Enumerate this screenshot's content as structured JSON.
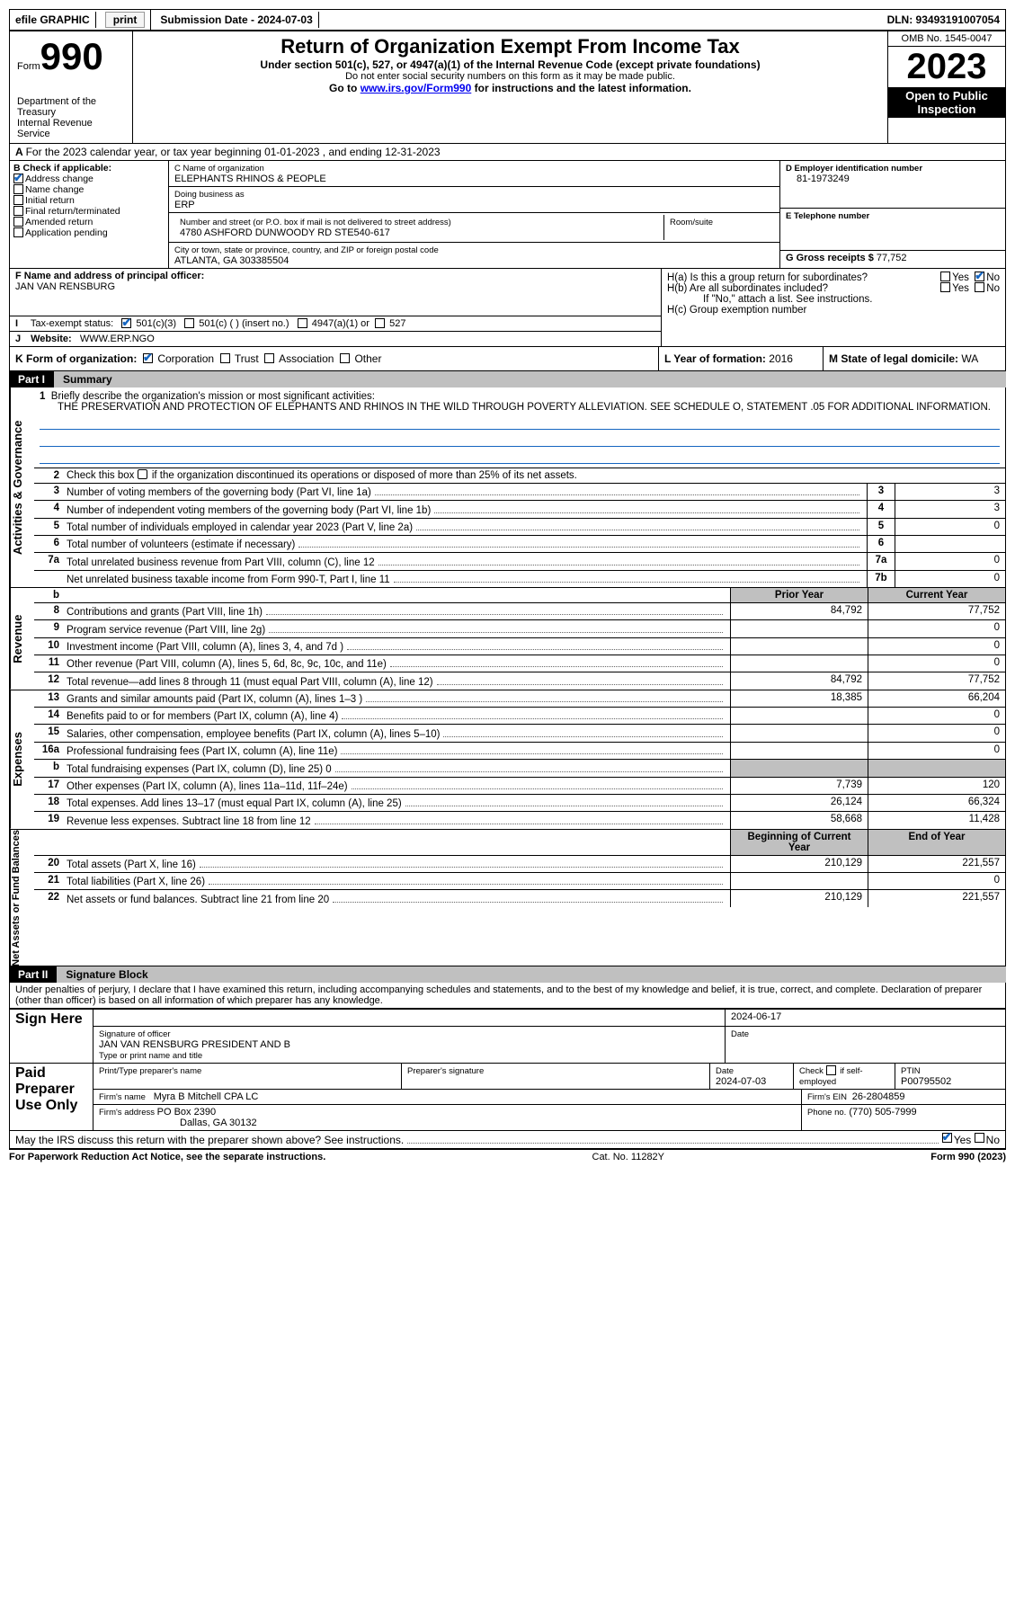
{
  "topbar": {
    "efile": "efile GRAPHIC",
    "print": "print",
    "submission": "Submission Date - 2024-07-03",
    "dln": "DLN: 93493191007054"
  },
  "header": {
    "form_word": "Form",
    "form_no": "990",
    "dept1": "Department of the Treasury",
    "dept2": "Internal Revenue Service",
    "title": "Return of Organization Exempt From Income Tax",
    "sub1": "Under section 501(c), 527, or 4947(a)(1) of the Internal Revenue Code (except private foundations)",
    "sub2": "Do not enter social security numbers on this form as it may be made public.",
    "sub3_a": "Go to ",
    "sub3_link": "www.irs.gov/Form990",
    "sub3_b": " for instructions and the latest information.",
    "omb": "OMB No. 1545-0047",
    "year": "2023",
    "open": "Open to Public Inspection"
  },
  "lineA": "For the 2023 calendar year, or tax year beginning 01-01-2023    , and ending 12-31-2023",
  "B": {
    "label": "B Check if applicable:",
    "i1": "Address change",
    "i2": "Name change",
    "i3": "Initial return",
    "i4": "Final return/terminated",
    "i5": "Amended return",
    "i6": "Application pending"
  },
  "C": {
    "l1": "C Name of organization",
    "v1": "ELEPHANTS RHINOS & PEOPLE",
    "l2": "Doing business as",
    "v2": "ERP",
    "l3": "Number and street (or P.O. box if mail is not delivered to street address)",
    "v3": "4780 ASHFORD DUNWOODY RD STE540-617",
    "l3b": "Room/suite",
    "l4": "City or town, state or province, country, and ZIP or foreign postal code",
    "v4": "ATLANTA, GA  303385504"
  },
  "D": {
    "l": "D Employer identification number",
    "v": "81-1973249"
  },
  "E": {
    "l": "E Telephone number"
  },
  "G": {
    "l": "G Gross receipts $",
    "v": "77,752"
  },
  "F": {
    "l": "F  Name and address of principal officer:",
    "v": "JAN VAN RENSBURG"
  },
  "H": {
    "ha": "H(a)  Is this a group return for subordinates?",
    "hb": "H(b)  Are all subordinates included?",
    "hbnote": "If \"No,\" attach a list. See instructions.",
    "hc": "H(c)  Group exemption number ",
    "yes": "Yes",
    "no": "No"
  },
  "I": {
    "l": "Tax-exempt status:",
    "o1": "501(c)(3)",
    "o2": "501(c) (  ) (insert no.)",
    "o3": "4947(a)(1) or",
    "o4": "527"
  },
  "J": {
    "l": "Website: ",
    "v": "WWW.ERP.NGO"
  },
  "K": {
    "l": "K Form of organization:",
    "o1": "Corporation",
    "o2": "Trust",
    "o3": "Association",
    "o4": "Other"
  },
  "L": {
    "l": "L Year of formation:",
    "v": "2016"
  },
  "M": {
    "l": "M State of legal domicile:",
    "v": "WA"
  },
  "part1": {
    "pill": "Part I",
    "title": "Summary"
  },
  "summary": {
    "l1a": "Briefly describe the organization's mission or most significant activities:",
    "l1b": "THE PRESERVATION AND PROTECTION OF ELEPHANTS AND RHINOS IN THE WILD THROUGH POVERTY ALLEVIATION. SEE SCHEDULE O, STATEMENT .05 FOR ADDITIONAL INFORMATION.",
    "l2": "Check this box ▢ if the organization discontinued its operations or disposed of more than 25% of its net assets.",
    "rows": [
      {
        "n": "3",
        "t": "Number of voting members of the governing body (Part VI, line 1a)",
        "k": "3",
        "v": "3"
      },
      {
        "n": "4",
        "t": "Number of independent voting members of the governing body (Part VI, line 1b)",
        "k": "4",
        "v": "3"
      },
      {
        "n": "5",
        "t": "Total number of individuals employed in calendar year 2023 (Part V, line 2a)",
        "k": "5",
        "v": "0"
      },
      {
        "n": "6",
        "t": "Total number of volunteers (estimate if necessary)",
        "k": "6",
        "v": ""
      },
      {
        "n": "7a",
        "t": "Total unrelated business revenue from Part VIII, column (C), line 12",
        "k": "7a",
        "v": "0"
      },
      {
        "n": "",
        "t": "Net unrelated business taxable income from Form 990-T, Part I, line 11",
        "k": "7b",
        "v": "0"
      }
    ],
    "hdr_b": "b",
    "col_prior": "Prior Year",
    "col_curr": "Current Year",
    "rev": [
      {
        "n": "8",
        "t": "Contributions and grants (Part VIII, line 1h)",
        "p": "84,792",
        "c": "77,752"
      },
      {
        "n": "9",
        "t": "Program service revenue (Part VIII, line 2g)",
        "p": "",
        "c": "0"
      },
      {
        "n": "10",
        "t": "Investment income (Part VIII, column (A), lines 3, 4, and 7d )",
        "p": "",
        "c": "0"
      },
      {
        "n": "11",
        "t": "Other revenue (Part VIII, column (A), lines 5, 6d, 8c, 9c, 10c, and 11e)",
        "p": "",
        "c": "0"
      },
      {
        "n": "12",
        "t": "Total revenue—add lines 8 through 11 (must equal Part VIII, column (A), line 12)",
        "p": "84,792",
        "c": "77,752"
      }
    ],
    "exp": [
      {
        "n": "13",
        "t": "Grants and similar amounts paid (Part IX, column (A), lines 1–3 )",
        "p": "18,385",
        "c": "66,204"
      },
      {
        "n": "14",
        "t": "Benefits paid to or for members (Part IX, column (A), line 4)",
        "p": "",
        "c": "0"
      },
      {
        "n": "15",
        "t": "Salaries, other compensation, employee benefits (Part IX, column (A), lines 5–10)",
        "p": "",
        "c": "0"
      },
      {
        "n": "16a",
        "t": "Professional fundraising fees (Part IX, column (A), line 11e)",
        "p": "",
        "c": "0"
      },
      {
        "n": "b",
        "t": "Total fundraising expenses (Part IX, column (D), line 25) 0",
        "p": "shade",
        "c": "shade"
      },
      {
        "n": "17",
        "t": "Other expenses (Part IX, column (A), lines 11a–11d, 11f–24e)",
        "p": "7,739",
        "c": "120"
      },
      {
        "n": "18",
        "t": "Total expenses. Add lines 13–17 (must equal Part IX, column (A), line 25)",
        "p": "26,124",
        "c": "66,324"
      },
      {
        "n": "19",
        "t": "Revenue less expenses. Subtract line 18 from line 12",
        "p": "58,668",
        "c": "11,428"
      }
    ],
    "net_hdr_p": "Beginning of Current Year",
    "net_hdr_c": "End of Year",
    "net": [
      {
        "n": "20",
        "t": "Total assets (Part X, line 16)",
        "p": "210,129",
        "c": "221,557"
      },
      {
        "n": "21",
        "t": "Total liabilities (Part X, line 26)",
        "p": "",
        "c": "0"
      },
      {
        "n": "22",
        "t": "Net assets or fund balances. Subtract line 21 from line 20",
        "p": "210,129",
        "c": "221,557"
      }
    ],
    "side_ag": "Activities & Governance",
    "side_rev": "Revenue",
    "side_exp": "Expenses",
    "side_net": "Net Assets or Fund Balances"
  },
  "part2": {
    "pill": "Part II",
    "title": "Signature Block"
  },
  "sig": {
    "decl": "Under penalties of perjury, I declare that I have examined this return, including accompanying schedules and statements, and to the best of my knowledge and belief, it is true, correct, and complete. Declaration of preparer (other than officer) is based on all information of which preparer has any knowledge.",
    "signhere": "Sign Here",
    "sig_of_off": "Signature of officer",
    "date": "Date",
    "date_v": "2024-06-17",
    "officer": "JAN VAN RENSBURG  PRESIDENT AND B",
    "type_name": "Type or print name and title",
    "paid": "Paid Preparer Use Only",
    "prep_name_l": "Print/Type preparer's name",
    "prep_sig_l": "Preparer's signature",
    "prep_date_l": "Date",
    "prep_date_v": "2024-07-03",
    "check_l": "Check ▢ if self-employed",
    "ptin_l": "PTIN",
    "ptin_v": "P00795502",
    "firm_name_l": "Firm's name ",
    "firm_name_v": "Myra B Mitchell CPA LC",
    "firm_ein_l": "Firm's EIN ",
    "firm_ein_v": "26-2804859",
    "firm_addr_l": "Firm's address ",
    "firm_addr_v1": "PO Box 2390",
    "firm_addr_v2": "Dallas, GA  30132",
    "phone_l": "Phone no.",
    "phone_v": "(770) 505-7999",
    "discuss": "May the IRS discuss this return with the preparer shown above? See instructions."
  },
  "footer": {
    "l": "For Paperwork Reduction Act Notice, see the separate instructions.",
    "m": "Cat. No. 11282Y",
    "r": "Form 990 (2023)"
  }
}
